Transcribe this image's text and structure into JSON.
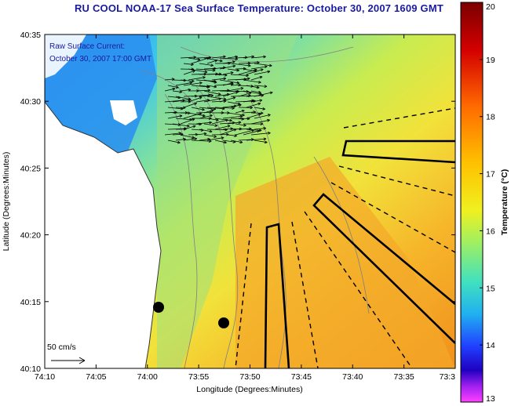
{
  "title": "RU COOL  NOAA-17  Sea Surface Temperature:  October 30, 2007 1609 GMT",
  "current_label_line1": "Raw Surface Current:",
  "current_label_line2": "October 30, 2007 17:00 GMT",
  "scale_label": "50 cm/s",
  "axes": {
    "xlabel": "Longitude (Degrees:Minutes)",
    "ylabel": "Latitude (Degrees:Minutes)",
    "xticks": [
      "74:10",
      "74:05",
      "74:00",
      "73:55",
      "73:50",
      "73:45",
      "73:40",
      "73:35",
      "73:3"
    ],
    "yticks": [
      "40:35",
      "40:30",
      "40:25",
      "40:20",
      "40:15",
      "40:10"
    ]
  },
  "colorbar": {
    "label": "Temperature (°C)",
    "ticks": [
      "20",
      "19",
      "18",
      "17",
      "16",
      "15",
      "14",
      "13"
    ],
    "range": [
      13,
      20
    ]
  },
  "colors": {
    "title": "#1a1aa0",
    "land": "#ffffff",
    "cold": "#1e90ff",
    "warm": "#f0a020"
  }
}
